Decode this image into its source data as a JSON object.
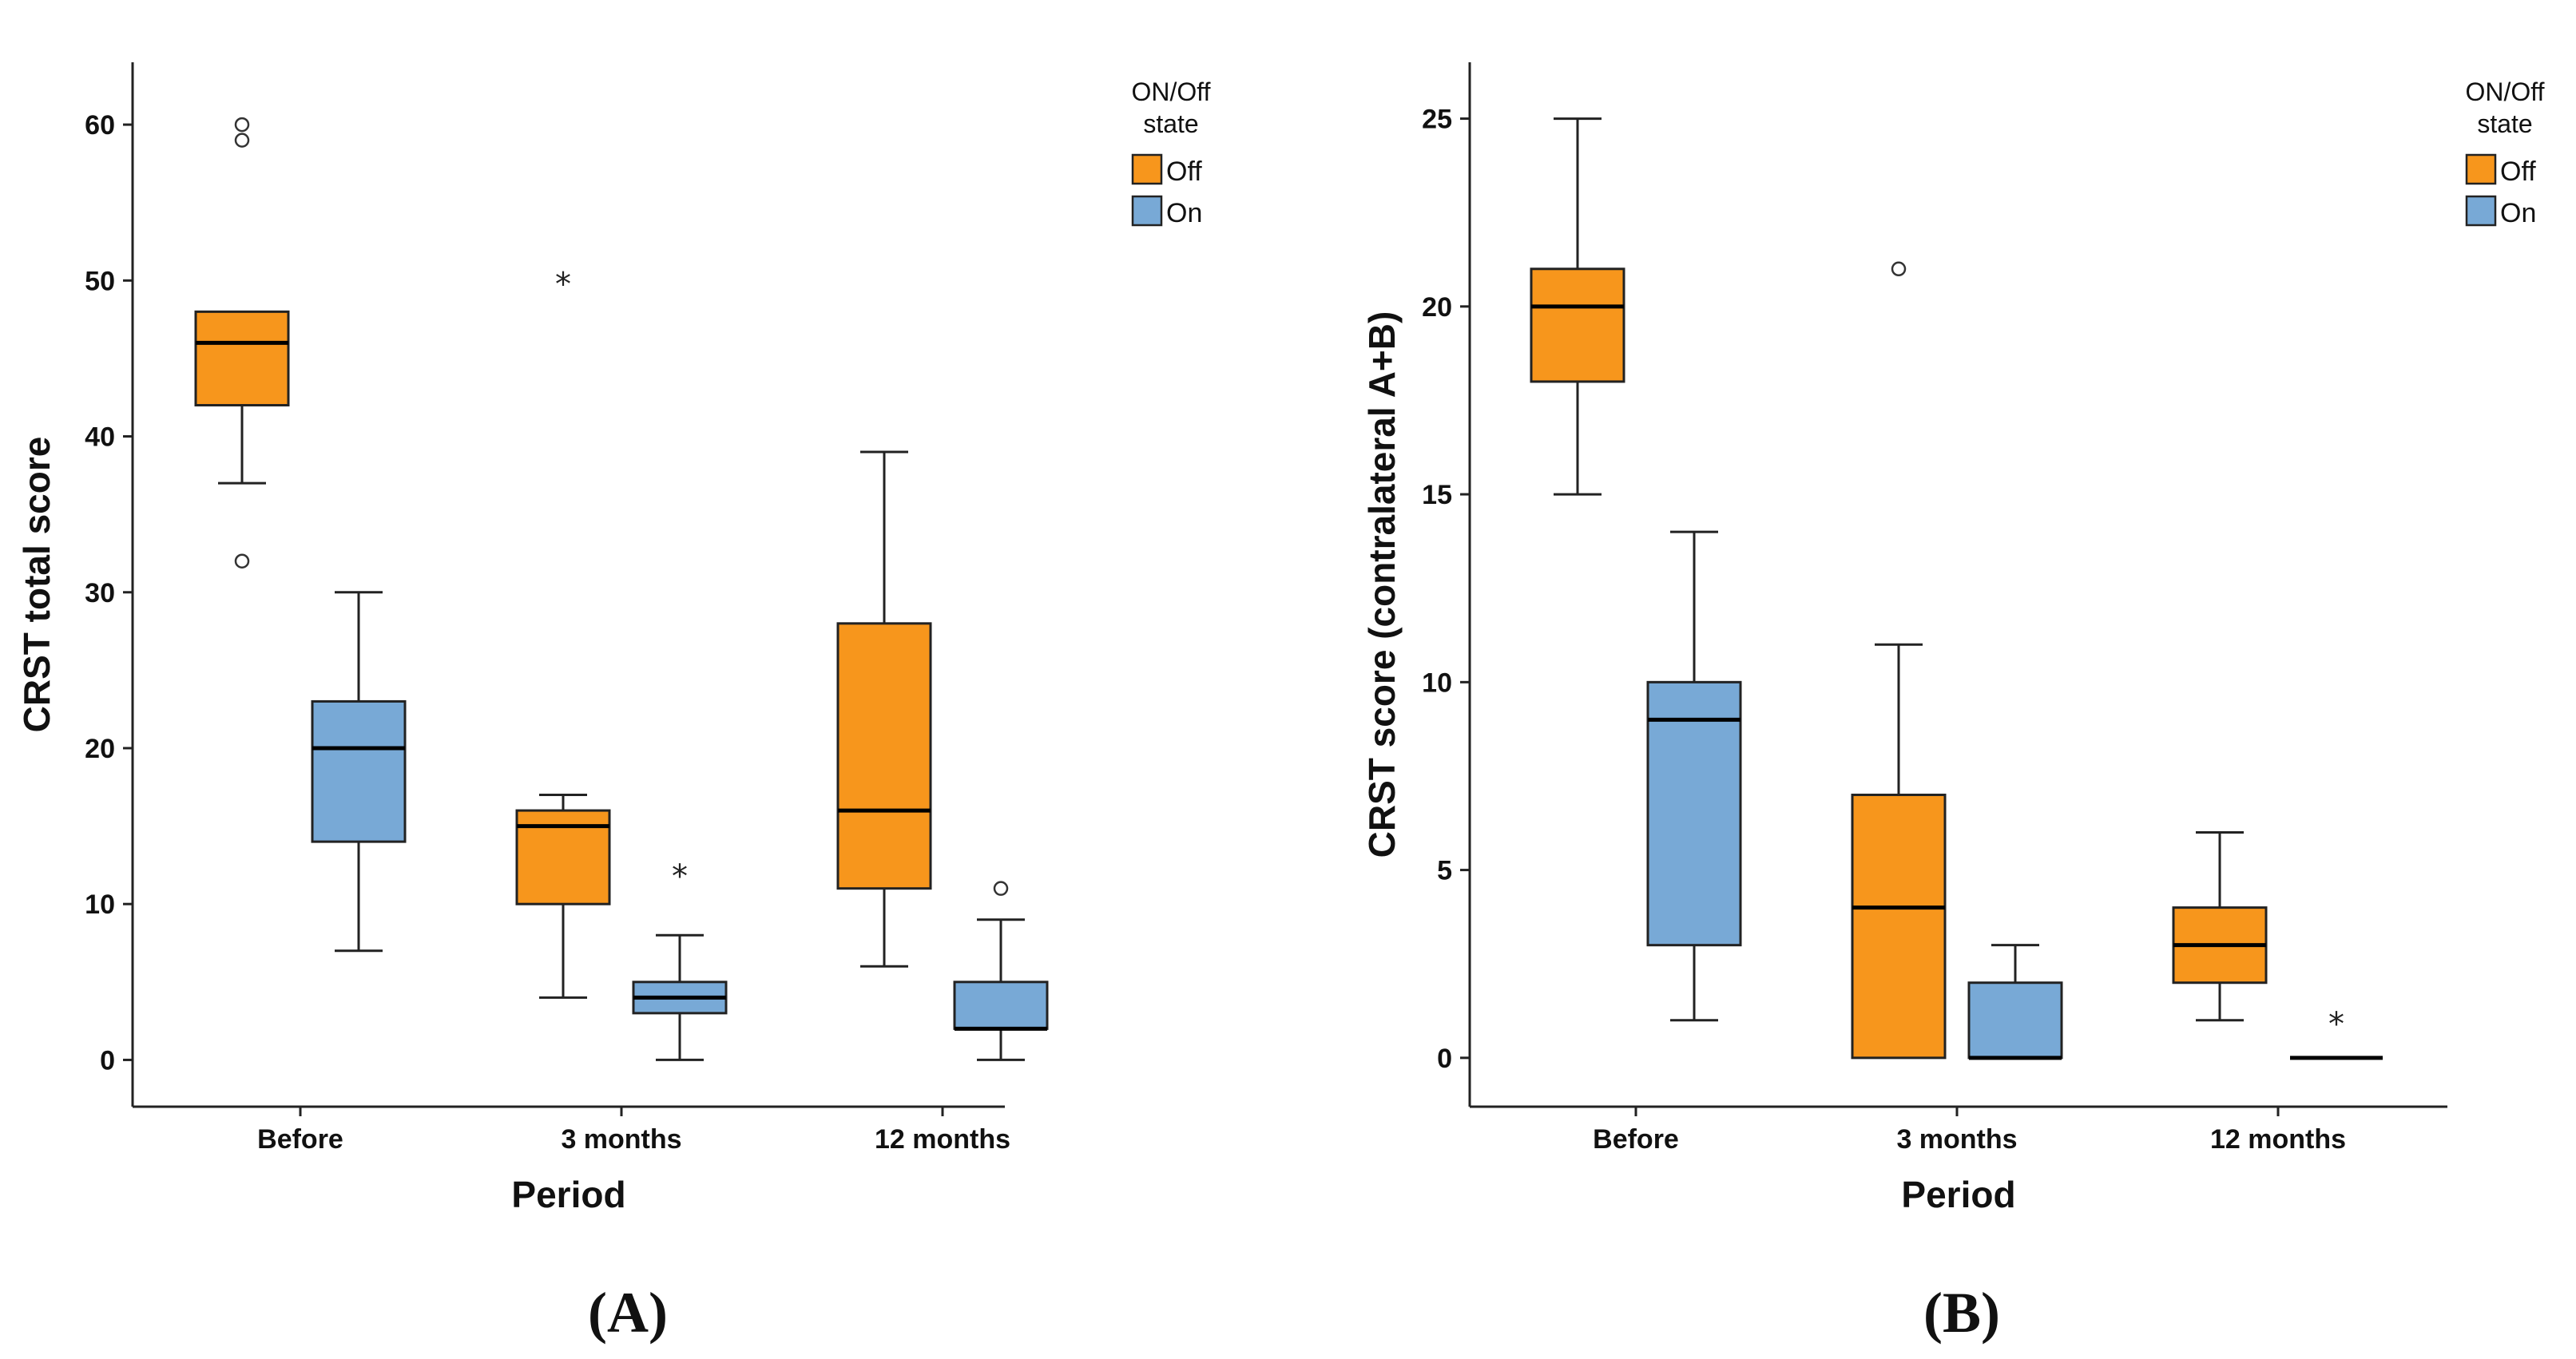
{
  "chart_data": [
    {
      "type": "box",
      "panel_label": "(A)",
      "xlabel": "Period",
      "ylabel": "CRST total score",
      "ylim": [
        -3,
        64
      ],
      "yticks": [
        0,
        10,
        20,
        30,
        40,
        50,
        60
      ],
      "categories": [
        "Before",
        "3 months",
        "12 months"
      ],
      "legend": {
        "title_lines": [
          "ON/Off",
          "state"
        ],
        "position": "top-right"
      },
      "series": [
        {
          "name": "Off",
          "color": "#F7961C",
          "boxes": [
            {
              "category": "Before",
              "whisker_low": 37,
              "q1": 42,
              "median": 46,
              "q3": 48,
              "whisker_high": 48,
              "outliers": [
                {
                  "value": 60,
                  "marker": "circle"
                },
                {
                  "value": 59,
                  "marker": "circle"
                },
                {
                  "value": 32,
                  "marker": "circle"
                }
              ]
            },
            {
              "category": "3 months",
              "whisker_low": 4,
              "q1": 10,
              "median": 15,
              "q3": 16,
              "whisker_high": 17,
              "outliers": [
                {
                  "value": 50,
                  "marker": "star"
                }
              ]
            },
            {
              "category": "12 months",
              "whisker_low": 6,
              "q1": 11,
              "median": 16,
              "q3": 28,
              "whisker_high": 39,
              "outliers": []
            }
          ]
        },
        {
          "name": "On",
          "color": "#78A9D6",
          "boxes": [
            {
              "category": "Before",
              "whisker_low": 7,
              "q1": 14,
              "median": 20,
              "q3": 23,
              "whisker_high": 30,
              "outliers": []
            },
            {
              "category": "3 months",
              "whisker_low": 0,
              "q1": 3,
              "median": 4,
              "q3": 5,
              "whisker_high": 8,
              "outliers": [
                {
                  "value": 12,
                  "marker": "star"
                }
              ]
            },
            {
              "category": "12 months",
              "whisker_low": 0,
              "q1": 2,
              "median": 2,
              "q3": 5,
              "whisker_high": 9,
              "outliers": [
                {
                  "value": 11,
                  "marker": "circle"
                }
              ]
            }
          ]
        }
      ]
    },
    {
      "type": "box",
      "panel_label": "(B)",
      "xlabel": "Period",
      "ylabel": "CRST score (contralateral A+B)",
      "ylim": [
        -1.3,
        26.5
      ],
      "yticks": [
        0,
        5,
        10,
        15,
        20,
        25
      ],
      "categories": [
        "Before",
        "3 months",
        "12 months"
      ],
      "legend": {
        "title_lines": [
          "ON/Off",
          "state"
        ],
        "position": "top-right"
      },
      "series": [
        {
          "name": "Off",
          "color": "#F7961C",
          "boxes": [
            {
              "category": "Before",
              "whisker_low": 15,
              "q1": 18,
              "median": 20,
              "q3": 21,
              "whisker_high": 25,
              "outliers": []
            },
            {
              "category": "3 months",
              "whisker_low": 0,
              "q1": 0,
              "median": 4,
              "q3": 7,
              "whisker_high": 11,
              "outliers": [
                {
                  "value": 21,
                  "marker": "circle"
                }
              ]
            },
            {
              "category": "12 months",
              "whisker_low": 1,
              "q1": 2,
              "median": 3,
              "q3": 4,
              "whisker_high": 6,
              "outliers": []
            }
          ]
        },
        {
          "name": "On",
          "color": "#78A9D6",
          "boxes": [
            {
              "category": "Before",
              "whisker_low": 1,
              "q1": 3,
              "median": 9,
              "q3": 10,
              "whisker_high": 14,
              "outliers": []
            },
            {
              "category": "3 months",
              "whisker_low": 0,
              "q1": 0,
              "median": 0,
              "q3": 2,
              "whisker_high": 3,
              "outliers": []
            },
            {
              "category": "12 months",
              "whisker_low": 0,
              "q1": 0,
              "median": 0,
              "q3": 0,
              "whisker_high": 0,
              "outliers": [
                {
                  "value": 1,
                  "marker": "star"
                }
              ]
            }
          ]
        }
      ]
    }
  ]
}
